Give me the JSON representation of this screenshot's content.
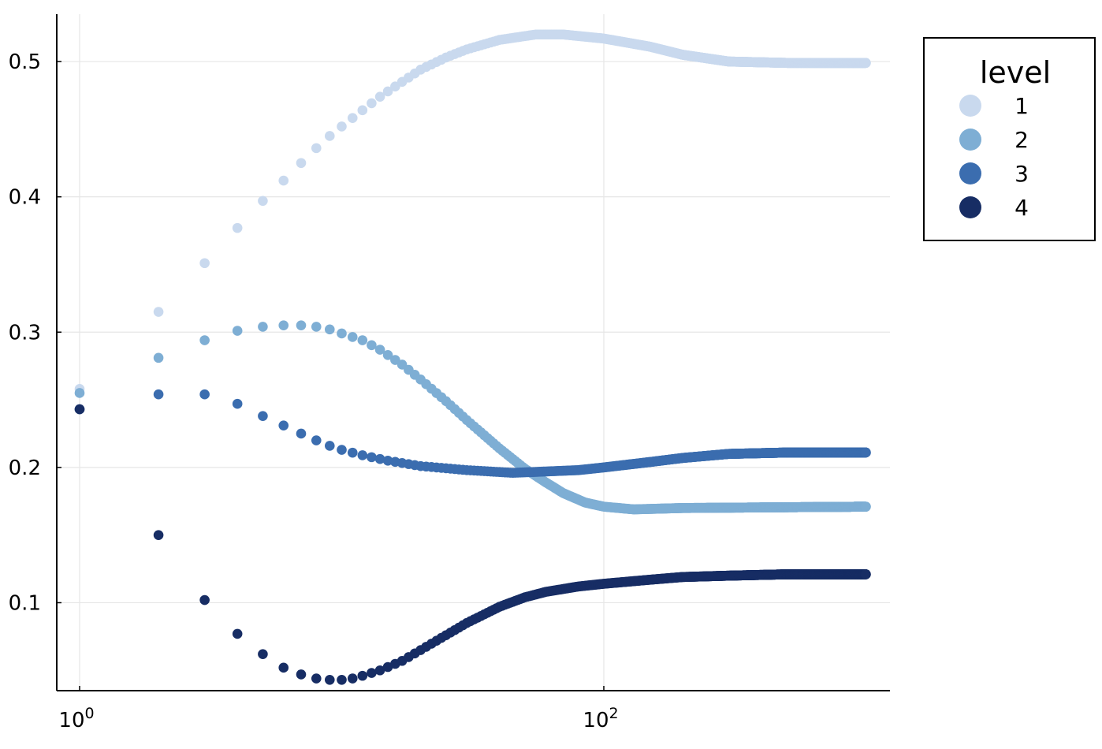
{
  "chart_data": {
    "type": "scatter",
    "title": "",
    "xlabel": "",
    "ylabel": "",
    "xscale": "log10",
    "xlim": [
      0.87,
      1000
    ],
    "ylim": [
      0.035,
      0.535
    ],
    "grid": true,
    "legend_position": "top-right, outside plot",
    "x_ticks": [
      {
        "value": 1,
        "base": "10",
        "exp": "0"
      },
      {
        "value": 100,
        "base": "10",
        "exp": "2"
      }
    ],
    "y_ticks": [
      {
        "value": 0.1,
        "label": "0.1"
      },
      {
        "value": 0.2,
        "label": "0.2"
      },
      {
        "value": 0.3,
        "label": "0.3"
      },
      {
        "value": 0.4,
        "label": "0.4"
      },
      {
        "value": 0.5,
        "label": "0.5"
      }
    ],
    "x_max": 1000,
    "legend": {
      "title": "level",
      "labels": [
        "1",
        "2",
        "3",
        "4"
      ]
    },
    "series": [
      {
        "name": "1",
        "color": "#c9d9ee",
        "anchors": [
          [
            1,
            0.258
          ],
          [
            2,
            0.315
          ],
          [
            3,
            0.351
          ],
          [
            4,
            0.377
          ],
          [
            5,
            0.397
          ],
          [
            6,
            0.412
          ],
          [
            7,
            0.425
          ],
          [
            8,
            0.436
          ],
          [
            9,
            0.445
          ],
          [
            10,
            0.452
          ],
          [
            12,
            0.464
          ],
          [
            14,
            0.474
          ],
          [
            17,
            0.485
          ],
          [
            20,
            0.494
          ],
          [
            25,
            0.503
          ],
          [
            30,
            0.509
          ],
          [
            40,
            0.516
          ],
          [
            55,
            0.52
          ],
          [
            70,
            0.52
          ],
          [
            100,
            0.517
          ],
          [
            150,
            0.511
          ],
          [
            200,
            0.505
          ],
          [
            300,
            0.5
          ],
          [
            500,
            0.499
          ],
          [
            1000,
            0.499
          ]
        ]
      },
      {
        "name": "2",
        "color": "#7eaed4",
        "anchors": [
          [
            1,
            0.255
          ],
          [
            2,
            0.281
          ],
          [
            3,
            0.294
          ],
          [
            4,
            0.301
          ],
          [
            5,
            0.304
          ],
          [
            6,
            0.305
          ],
          [
            7,
            0.305
          ],
          [
            8,
            0.304
          ],
          [
            9,
            0.302
          ],
          [
            10,
            0.299
          ],
          [
            12,
            0.294
          ],
          [
            14,
            0.287
          ],
          [
            17,
            0.276
          ],
          [
            20,
            0.265
          ],
          [
            25,
            0.249
          ],
          [
            30,
            0.235
          ],
          [
            40,
            0.214
          ],
          [
            50,
            0.199
          ],
          [
            60,
            0.189
          ],
          [
            70,
            0.181
          ],
          [
            85,
            0.174
          ],
          [
            100,
            0.171
          ],
          [
            130,
            0.169
          ],
          [
            200,
            0.17
          ],
          [
            1000,
            0.171
          ]
        ]
      },
      {
        "name": "3",
        "color": "#3b6daf",
        "anchors": [
          [
            1,
            0.243
          ],
          [
            2,
            0.254
          ],
          [
            3,
            0.254
          ],
          [
            4,
            0.247
          ],
          [
            5,
            0.238
          ],
          [
            6,
            0.231
          ],
          [
            7,
            0.225
          ],
          [
            8,
            0.22
          ],
          [
            9,
            0.216
          ],
          [
            10,
            0.213
          ],
          [
            12,
            0.209
          ],
          [
            15,
            0.205
          ],
          [
            20,
            0.201
          ],
          [
            30,
            0.198
          ],
          [
            45,
            0.196
          ],
          [
            60,
            0.197
          ],
          [
            80,
            0.198
          ],
          [
            100,
            0.2
          ],
          [
            150,
            0.204
          ],
          [
            200,
            0.207
          ],
          [
            300,
            0.21
          ],
          [
            500,
            0.211
          ],
          [
            1000,
            0.211
          ]
        ]
      },
      {
        "name": "4",
        "color": "#172d64",
        "anchors": [
          [
            1,
            0.243
          ],
          [
            2,
            0.15
          ],
          [
            3,
            0.102
          ],
          [
            4,
            0.077
          ],
          [
            5,
            0.062
          ],
          [
            6,
            0.052
          ],
          [
            7,
            0.047
          ],
          [
            8,
            0.044
          ],
          [
            9,
            0.043
          ],
          [
            10,
            0.043
          ],
          [
            11,
            0.044
          ],
          [
            12,
            0.046
          ],
          [
            14,
            0.05
          ],
          [
            17,
            0.057
          ],
          [
            20,
            0.065
          ],
          [
            25,
            0.076
          ],
          [
            30,
            0.085
          ],
          [
            40,
            0.097
          ],
          [
            50,
            0.104
          ],
          [
            60,
            0.108
          ],
          [
            80,
            0.112
          ],
          [
            100,
            0.114
          ],
          [
            150,
            0.117
          ],
          [
            200,
            0.119
          ],
          [
            300,
            0.12
          ],
          [
            500,
            0.121
          ],
          [
            1000,
            0.121
          ]
        ]
      }
    ]
  }
}
